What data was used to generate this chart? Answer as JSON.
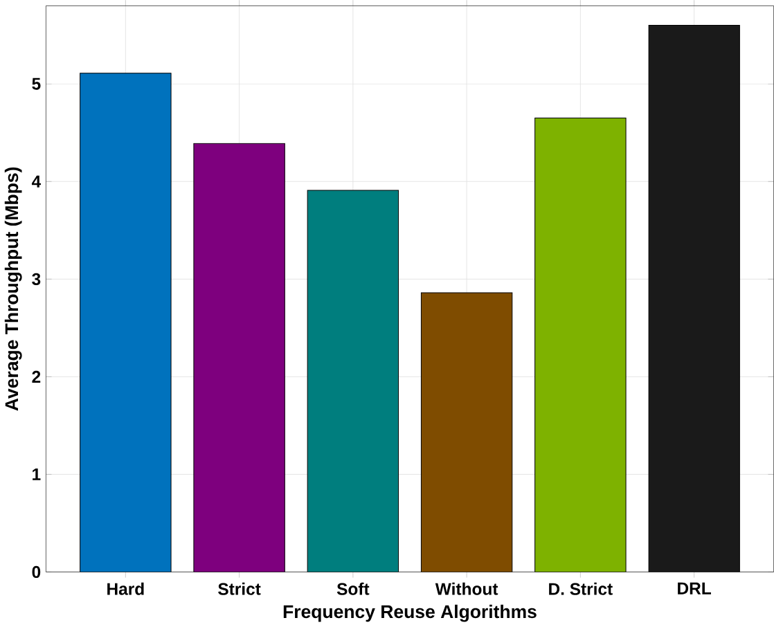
{
  "chart_data": {
    "type": "bar",
    "xlabel": "Frequency Reuse Algorithms",
    "ylabel": "Average Throughput (Mbps)",
    "categories": [
      "Hard",
      "Strict",
      "Soft",
      "Without",
      "D. Strict",
      "DRL"
    ],
    "values": [
      5.11,
      4.39,
      3.91,
      2.86,
      4.65,
      5.6
    ],
    "colors": [
      "#0072bd",
      "#7e007e",
      "#007e7e",
      "#7f4c00",
      "#7eb200",
      "#1a1a1a"
    ],
    "ylim": [
      0,
      5.8
    ],
    "yticks": [
      0,
      1,
      2,
      3,
      4,
      5
    ],
    "grid": true
  }
}
